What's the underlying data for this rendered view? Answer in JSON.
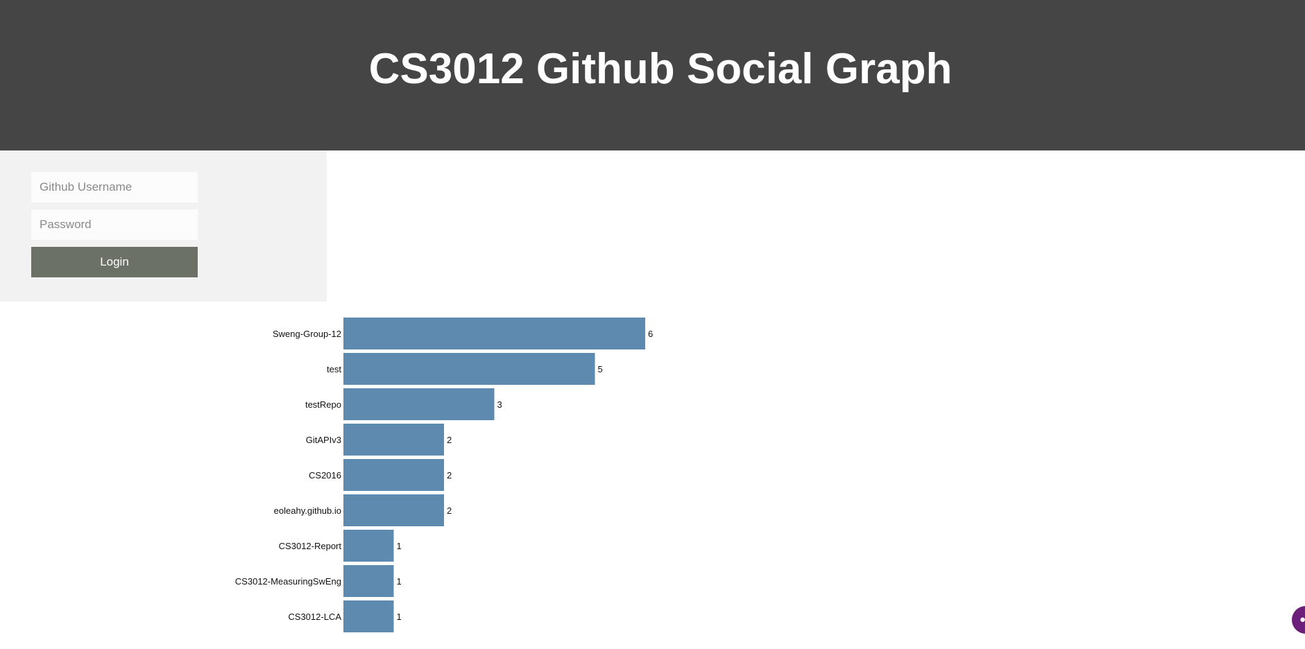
{
  "header": {
    "title": "CS3012 Github Social Graph"
  },
  "login": {
    "username_placeholder": "Github Username",
    "username_value": "",
    "password_placeholder": "Password",
    "password_value": "",
    "button_label": "Login"
  },
  "chart_data": {
    "type": "bar",
    "orientation": "horizontal",
    "categories": [
      "Sweng-Group-12",
      "test",
      "testRepo",
      "GitAPIv3",
      "CS2016",
      "eoleahy.github.io",
      "CS3012-Report",
      "CS3012-MeasuringSwEng",
      "CS3012-LCA"
    ],
    "values": [
      6,
      5,
      3,
      2,
      2,
      2,
      1,
      1,
      1
    ],
    "bar_color": "#5f8aaf",
    "title": "",
    "xlabel": "",
    "ylabel": "",
    "grid": false
  },
  "widget": {
    "color": "#6b1f7a"
  }
}
